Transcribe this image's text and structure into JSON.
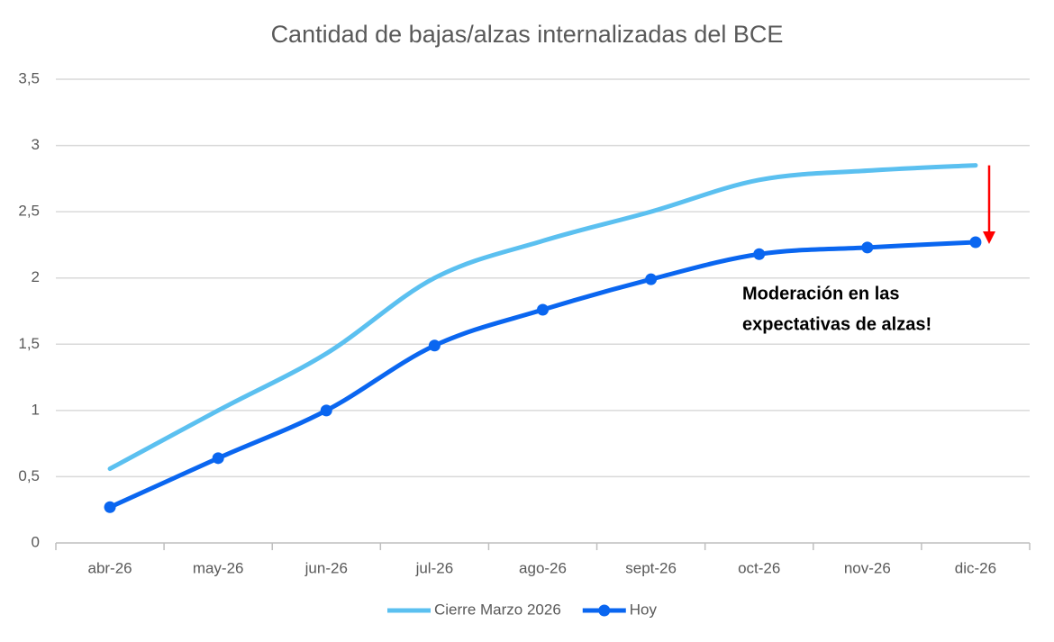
{
  "chart_data": {
    "type": "line",
    "title": "Cantidad de bajas/alzas internalizadas del BCE",
    "categories": [
      "abr-26",
      "may-26",
      "jun-26",
      "jul-26",
      "ago-26",
      "sept-26",
      "oct-26",
      "nov-26",
      "dic-26"
    ],
    "series": [
      {
        "name": "Cierre Marzo 2026",
        "color": "#5bc0f0",
        "values": [
          0.56,
          1.0,
          1.43,
          2.0,
          2.28,
          2.5,
          2.74,
          2.81,
          2.85
        ]
      },
      {
        "name": "Hoy",
        "color": "#0a66f0",
        "values": [
          0.27,
          0.64,
          1.0,
          1.49,
          1.76,
          1.99,
          2.18,
          2.23,
          2.27
        ]
      }
    ],
    "ylim": [
      0,
      3.5
    ],
    "yticks": [
      0,
      {
        "value": 0.5,
        "label": "0,5"
      },
      1,
      {
        "value": 1.5,
        "label": "1,5"
      },
      2,
      {
        "value": 2.5,
        "label": "2,5"
      },
      3,
      {
        "value": 3.5,
        "label": "3,5"
      }
    ],
    "grid": true,
    "legend": "bottom",
    "annotation": [
      "Moderación en las",
      "expectativas de alzas!"
    ],
    "arrow_color": "#ff0000"
  }
}
